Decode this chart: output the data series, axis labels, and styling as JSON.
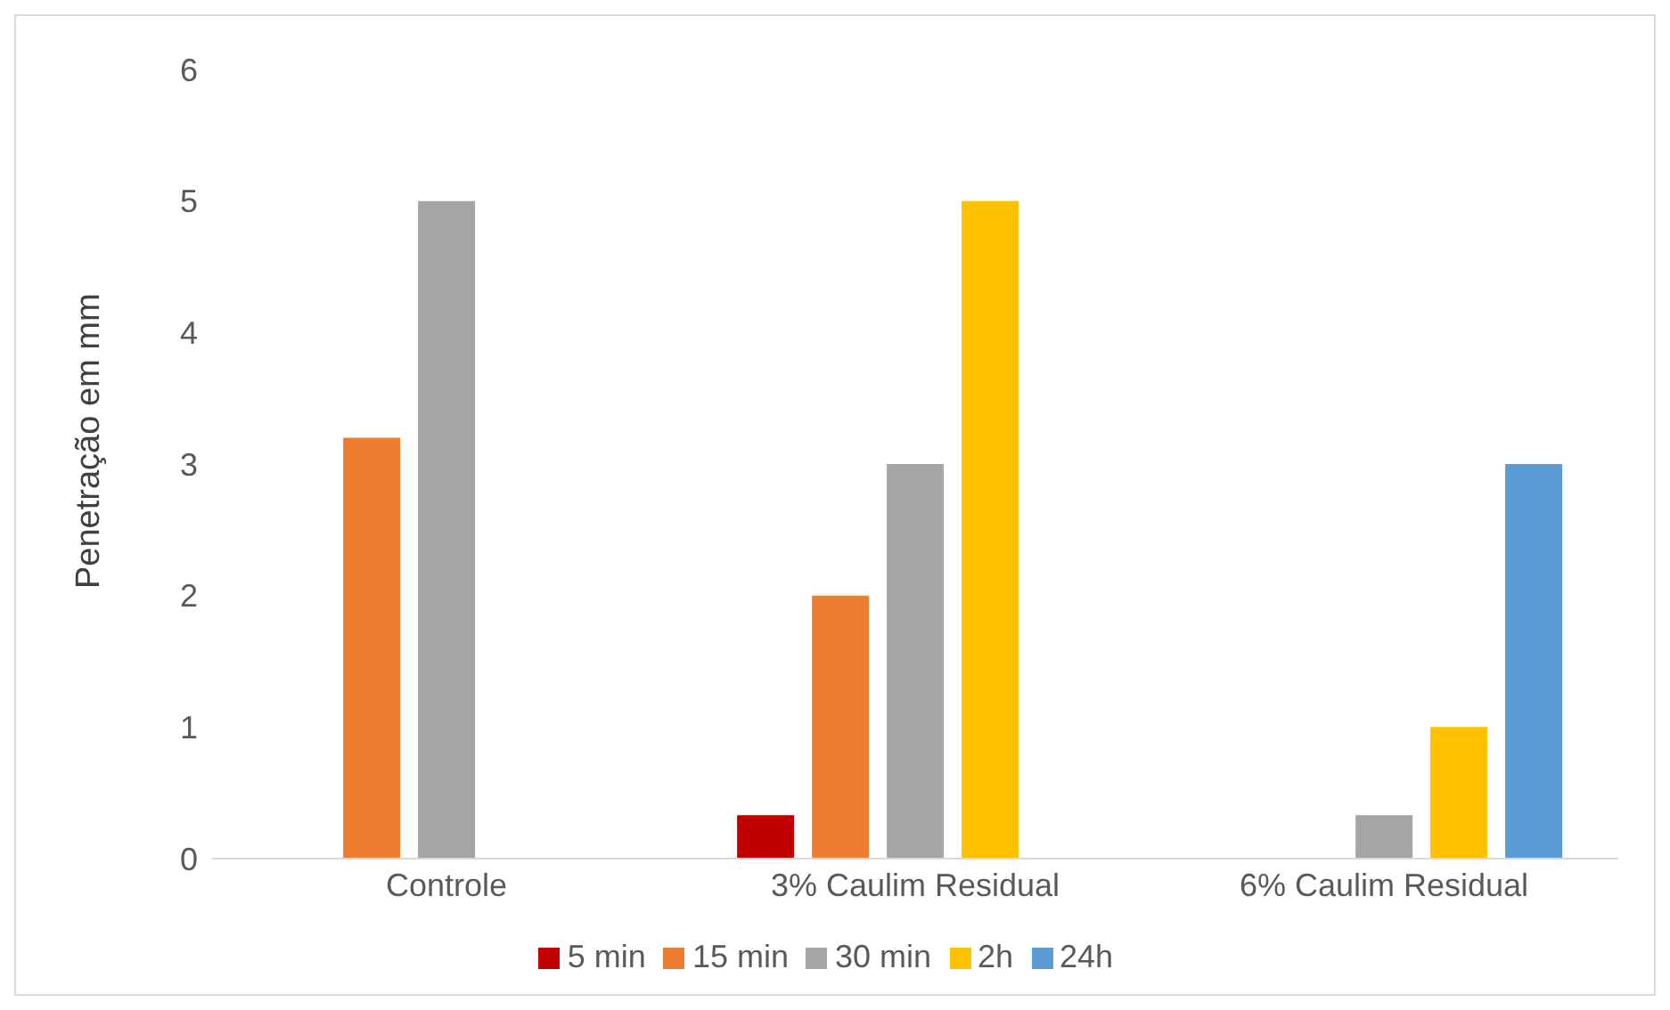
{
  "chart_data": {
    "type": "bar",
    "ylabel": "Penetração em mm",
    "categories": [
      "Controle",
      "3% Caulim Residual",
      "6% Caulim Residual"
    ],
    "series": [
      {
        "name": "5 min",
        "color": "#c00000",
        "values": [
          null,
          0.33,
          null
        ]
      },
      {
        "name": "15 min",
        "color": "#ed7d31",
        "values": [
          3.2,
          2,
          null
        ]
      },
      {
        "name": "30 min",
        "color": "#a5a5a5",
        "values": [
          5,
          3,
          0.33
        ]
      },
      {
        "name": "2h",
        "color": "#ffc000",
        "values": [
          null,
          5,
          1
        ]
      },
      {
        "name": "24h",
        "color": "#5b9bd5",
        "values": [
          null,
          null,
          3
        ]
      }
    ],
    "ylim": [
      0,
      6
    ],
    "yticks": [
      0,
      1,
      2,
      3,
      4,
      5,
      6
    ],
    "grid": false,
    "legend": "bottom"
  }
}
